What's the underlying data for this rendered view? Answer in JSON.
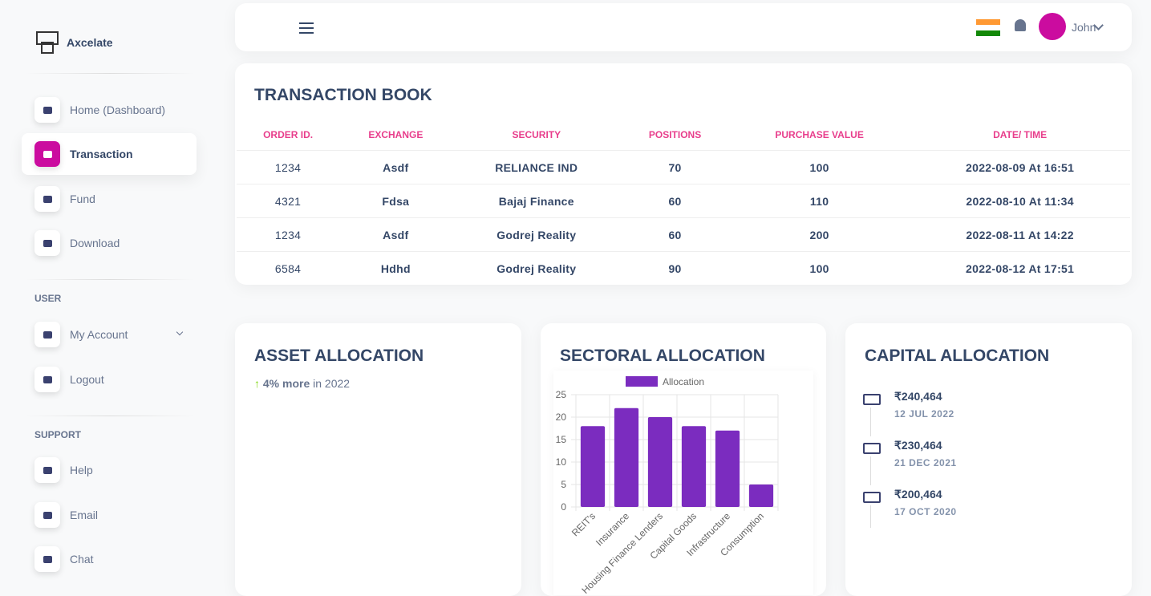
{
  "sidebar": {
    "brand": "Axcelate",
    "nav": [
      "Home (Dashboard)",
      "Transaction",
      "Fund",
      "Download"
    ],
    "sections": [
      {
        "title": "USER",
        "items": [
          "My Account",
          "Logout"
        ]
      },
      {
        "title": "SUPPORT",
        "items": [
          "Help",
          "Email",
          "Chat"
        ]
      }
    ]
  },
  "topbar": {
    "user": "John"
  },
  "transaction_book": {
    "title": "TRANSACTION BOOK",
    "columns": [
      "ORDER ID.",
      "EXCHANGE",
      "SECURITY",
      "POSITIONS",
      "PURCHASE VALUE",
      "DATE/ TIME"
    ],
    "rows": [
      [
        "1234",
        "Asdf",
        "RELIANCE IND",
        "70",
        "100",
        "2022-08-09 At 16:51"
      ],
      [
        "4321",
        "Fdsa",
        "Bajaj Finance",
        "60",
        "110",
        "2022-08-10 At 11:34"
      ],
      [
        "1234",
        "Asdf",
        "Godrej Reality",
        "60",
        "200",
        "2022-08-11 At 14:22"
      ],
      [
        "6584",
        "Hdhd",
        "Godrej Reality",
        "90",
        "100",
        "2022-08-12 At 17:51"
      ]
    ]
  },
  "asset_allocation": {
    "title": "ASSET ALLOCATION",
    "highlight": "4% more",
    "note": "in 2022"
  },
  "sectoral_allocation": {
    "title": "SECTORAL ALLOCATION",
    "chart_data": {
      "type": "bar",
      "categories": [
        "REIT's",
        "Insurance",
        "Housing Finance Lenders",
        "Capital Goods",
        "Infrastructure",
        "Consumption"
      ],
      "series": [
        {
          "name": "Allocation",
          "color": "#7b2cbf",
          "values": [
            18,
            22,
            20,
            18,
            17,
            5
          ]
        }
      ],
      "ylim": [
        0,
        25
      ],
      "yticks": [
        0,
        5,
        10,
        15,
        20,
        25
      ],
      "grid": true
    }
  },
  "capital_allocation": {
    "title": "CAPITAL ALLOCATION",
    "items": [
      {
        "amount": "₹240,464",
        "date": "12 JUL 2022"
      },
      {
        "amount": "₹230,464",
        "date": "21 DEC 2021"
      },
      {
        "amount": "₹200,464",
        "date": "17 OCT 2020"
      }
    ]
  }
}
